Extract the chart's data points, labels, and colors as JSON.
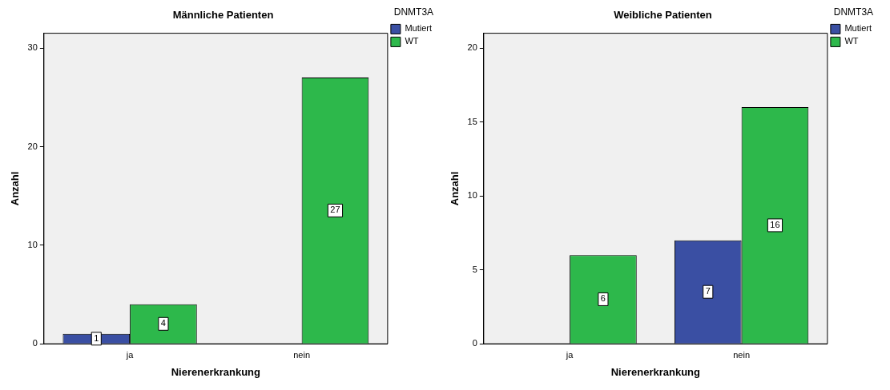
{
  "chart_data": [
    {
      "type": "bar",
      "title": "Männliche Patienten",
      "xlabel": "Nierenerkrankung",
      "ylabel": "Anzahl",
      "legend_title": "DNMT3A",
      "categories": [
        "ja",
        "nein"
      ],
      "series": [
        {
          "name": "Mutiert",
          "color": "#3a4fa3",
          "values": [
            1,
            null
          ]
        },
        {
          "name": "WT",
          "color": "#2db84b",
          "values": [
            4,
            27
          ]
        }
      ],
      "ylim": [
        0,
        31.5
      ],
      "yticks": [
        0,
        10,
        20,
        30
      ],
      "grid": false,
      "legend": "top right",
      "data_labels": true
    },
    {
      "type": "bar",
      "title": "Weibliche Patienten",
      "xlabel": "Nierenerkrankung",
      "ylabel": "Anzahl",
      "legend_title": "DNMT3A",
      "categories": [
        "ja",
        "nein"
      ],
      "series": [
        {
          "name": "Mutiert",
          "color": "#3a4fa3",
          "values": [
            null,
            7
          ]
        },
        {
          "name": "WT",
          "color": "#2db84b",
          "values": [
            6,
            16
          ]
        }
      ],
      "ylim": [
        0,
        21
      ],
      "yticks": [
        0,
        5,
        10,
        15,
        20
      ],
      "grid": false,
      "legend": "top right",
      "data_labels": true
    }
  ]
}
